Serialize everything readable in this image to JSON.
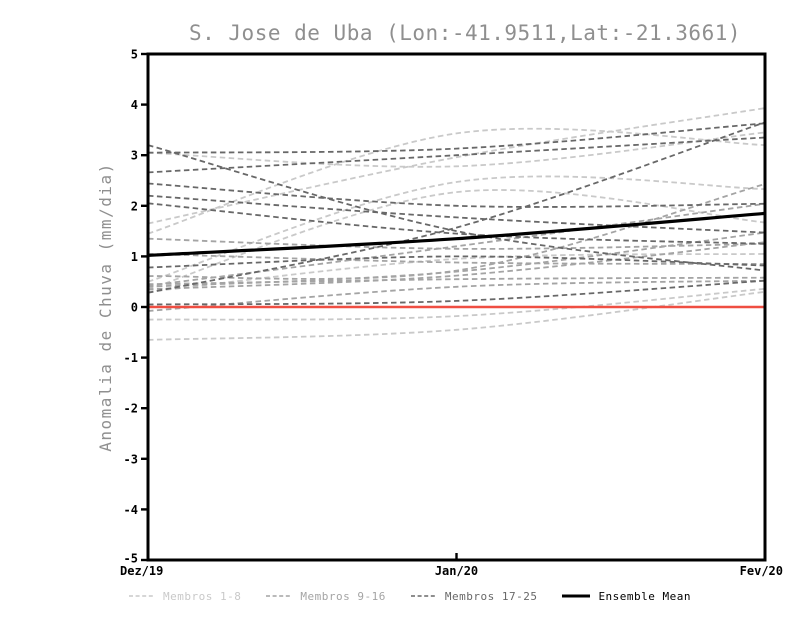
{
  "chart": {
    "title": "S. Jose de Uba (Lon:-41.9511,Lat:-21.3661)",
    "ylabel": "Anomalia de Chuva (mm/dia)"
  },
  "chart_data": {
    "type": "line",
    "title": "S. Jose de Uba (Lon:-41.9511,Lat:-21.3661)",
    "ylabel": "Anomalia de Chuva (mm/dia)",
    "xlabel": "",
    "x_categories": [
      "Dez/19",
      "Jan/20",
      "Fev/20"
    ],
    "ylim": [
      -5,
      5
    ],
    "yticks": [
      5,
      4,
      3,
      2,
      1,
      0,
      -1,
      -2,
      -3,
      -4,
      -5
    ],
    "grid": false,
    "legend_position": "bottom",
    "title_color": "#8f8f8f",
    "axis_color": "#000000",
    "zero_line": {
      "value": 0,
      "color": "#ef4e42",
      "width": 2.4
    },
    "line_style": {
      "member_dash": "5.5,3.5",
      "member_width": 1.8,
      "mean_width": 3.2
    },
    "groups": [
      {
        "name": "Membros 1-8",
        "color": "#c9c9c9",
        "members": [
          [
            3.05,
            2.78,
            3.45
          ],
          [
            1.65,
            2.96,
            3.93
          ],
          [
            1.45,
            3.43,
            3.2
          ],
          [
            0.5,
            2.47,
            2.33
          ],
          [
            0.35,
            2.27,
            1.67
          ],
          [
            0.3,
            0.95,
            1.05
          ],
          [
            -0.25,
            -0.18,
            0.36
          ],
          [
            -0.65,
            -0.45,
            0.3
          ]
        ]
      },
      {
        "name": "Membros 9-16",
        "color": "#a4a4a4",
        "members": [
          [
            0.61,
            0.72,
            2.43
          ],
          [
            0.42,
            1.2,
            2.04
          ],
          [
            0.4,
            0.7,
            1.47
          ],
          [
            0.35,
            0.62,
            1.28
          ],
          [
            0.45,
            0.55,
            0.58
          ],
          [
            -0.08,
            0.4,
            0.52
          ],
          [
            1.05,
            0.88,
            0.85
          ],
          [
            1.35,
            1.15,
            1.25
          ]
        ]
      },
      {
        "name": "Membros 17-25",
        "color": "#686868",
        "members": [
          [
            3.2,
            1.5,
            0.72
          ],
          [
            3.05,
            3.13,
            3.63
          ],
          [
            2.66,
            3.0,
            3.35
          ],
          [
            2.44,
            2.0,
            2.04
          ],
          [
            2.2,
            1.77,
            1.47
          ],
          [
            2.05,
            1.45,
            1.25
          ],
          [
            0.78,
            1.0,
            0.82
          ],
          [
            0.28,
            1.57,
            3.65
          ],
          [
            0.05,
            0.12,
            0.52
          ]
        ]
      }
    ],
    "mean": {
      "name": "Ensemble Mean",
      "color": "#000000",
      "values": [
        1.02,
        1.35,
        1.85
      ]
    }
  }
}
